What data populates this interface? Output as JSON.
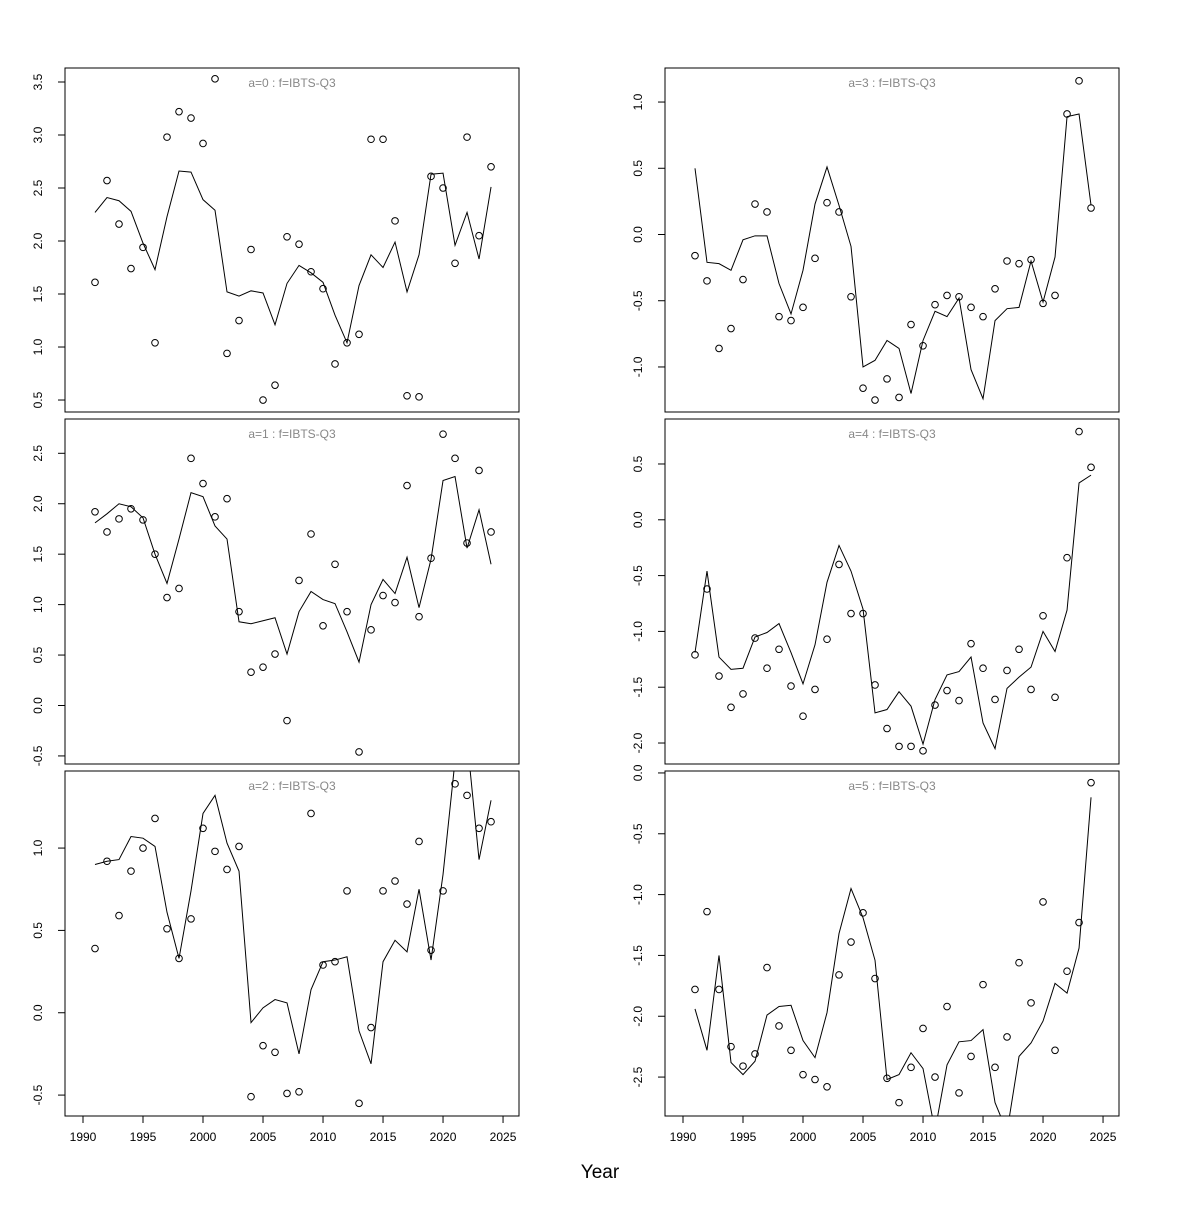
{
  "xlabel": "Year",
  "chart_data": [
    {
      "type": "line",
      "title": "a=0  :  f=IBTS-Q3",
      "x": [
        1991,
        1992,
        1993,
        1994,
        1995,
        1996,
        1997,
        1998,
        1999,
        2000,
        2001,
        2002,
        2003,
        2004,
        2005,
        2006,
        2007,
        2008,
        2009,
        2010,
        2011,
        2012,
        2013,
        2014,
        2015,
        2016,
        2017,
        2018,
        2019,
        2020,
        2021,
        2022,
        2023,
        2024
      ],
      "series": [
        {
          "style": "points",
          "color": "#000000",
          "values": [
            1.61,
            2.57,
            2.16,
            1.74,
            1.94,
            1.04,
            2.98,
            3.22,
            3.16,
            2.92,
            3.53,
            0.94,
            1.25,
            1.92,
            0.5,
            0.64,
            2.04,
            1.97,
            1.71,
            1.55,
            0.84,
            1.04,
            1.12,
            2.96,
            2.96,
            2.19,
            0.54,
            0.53,
            2.61,
            2.5,
            1.79,
            2.98,
            2.05,
            2.7
          ]
        },
        {
          "style": "line",
          "color": "#000000",
          "values": [
            2.27,
            2.41,
            2.38,
            2.28,
            1.98,
            1.73,
            2.23,
            2.66,
            2.65,
            2.39,
            2.29,
            1.52,
            1.48,
            1.53,
            1.51,
            1.21,
            1.6,
            1.77,
            1.7,
            1.61,
            1.3,
            1.04,
            1.58,
            1.87,
            1.75,
            1.99,
            1.52,
            1.87,
            2.63,
            2.64,
            1.96,
            2.27,
            1.83,
            2.51
          ]
        }
      ],
      "xlim": [
        1988.5,
        2026.33
      ],
      "ylim": [
        0.387,
        3.632
      ],
      "yticks": [
        0.5,
        {
          "value": 1,
          "label": "1.0"
        },
        1.5,
        {
          "value": 2,
          "label": "2.0"
        },
        2.5,
        {
          "value": 3,
          "label": "3.0"
        },
        3.5
      ]
    },
    {
      "type": "line",
      "title": "a=1  :  f=IBTS-Q3",
      "x": [
        1991,
        1992,
        1993,
        1994,
        1995,
        1996,
        1997,
        1998,
        1999,
        2000,
        2001,
        2002,
        2003,
        2004,
        2005,
        2006,
        2007,
        2008,
        2009,
        2010,
        2011,
        2012,
        2013,
        2014,
        2015,
        2016,
        2017,
        2018,
        2019,
        2020,
        2021,
        2022,
        2023,
        2024
      ],
      "series": [
        {
          "style": "points",
          "color": "#000000",
          "values": [
            1.92,
            1.72,
            1.85,
            1.95,
            1.84,
            1.5,
            1.07,
            1.16,
            2.45,
            2.2,
            1.87,
            2.05,
            0.93,
            0.33,
            0.38,
            0.51,
            -0.15,
            1.24,
            1.7,
            0.79,
            1.4,
            0.93,
            -0.46,
            0.75,
            1.09,
            1.02,
            2.18,
            0.88,
            1.46,
            2.69,
            2.45,
            1.61,
            2.33,
            1.72
          ]
        },
        {
          "style": "line",
          "color": "#000000",
          "values": [
            1.81,
            1.9,
            2.0,
            1.97,
            1.86,
            1.5,
            1.21,
            1.65,
            2.11,
            2.07,
            1.78,
            1.65,
            0.83,
            0.81,
            0.84,
            0.87,
            0.51,
            0.93,
            1.13,
            1.05,
            1.01,
            0.73,
            0.43,
            1.0,
            1.25,
            1.11,
            1.47,
            0.97,
            1.45,
            2.23,
            2.27,
            1.56,
            1.94,
            1.4
          ]
        }
      ],
      "xlim": [
        1988.5,
        2026.33
      ],
      "ylim": [
        -0.58,
        2.84
      ],
      "yticks": [
        -0.5,
        {
          "value": 0,
          "label": "0.0"
        },
        0.5,
        {
          "value": 1,
          "label": "1.0"
        },
        1.5,
        {
          "value": 2,
          "label": "2.0"
        },
        2.5
      ]
    },
    {
      "type": "line",
      "title": "a=2  :  f=IBTS-Q3",
      "x": [
        1991,
        1992,
        1993,
        1994,
        1995,
        1996,
        1997,
        1998,
        1999,
        2000,
        2001,
        2002,
        2003,
        2004,
        2005,
        2006,
        2007,
        2008,
        2009,
        2010,
        2011,
        2012,
        2013,
        2014,
        2015,
        2016,
        2017,
        2018,
        2019,
        2020,
        2021,
        2022,
        2023,
        2024
      ],
      "series": [
        {
          "style": "points",
          "color": "#000000",
          "values": [
            0.39,
            0.92,
            0.59,
            0.86,
            1.0,
            1.18,
            0.51,
            0.33,
            0.57,
            1.12,
            0.98,
            0.87,
            1.01,
            -0.51,
            -0.2,
            -0.24,
            -0.49,
            -0.48,
            1.21,
            0.29,
            0.31,
            0.74,
            -0.55,
            -0.09,
            0.74,
            0.8,
            0.66,
            1.04,
            0.38,
            0.74,
            1.39,
            1.32,
            1.12,
            1.16
          ]
        },
        {
          "style": "line",
          "color": "#000000",
          "values": [
            0.9,
            0.92,
            0.93,
            1.07,
            1.06,
            1.01,
            0.61,
            0.33,
            0.74,
            1.21,
            1.32,
            1.03,
            0.86,
            -0.06,
            0.03,
            0.08,
            0.06,
            -0.25,
            0.14,
            0.31,
            0.32,
            0.34,
            -0.11,
            -0.31,
            0.31,
            0.44,
            0.37,
            0.75,
            0.32,
            0.84,
            1.53,
            1.66,
            0.93,
            1.29
          ]
        }
      ],
      "xlim": [
        1988.5,
        2026.33
      ],
      "ylim": [
        -0.627,
        1.468
      ],
      "xticks": [
        1990,
        1995,
        2000,
        2005,
        2010,
        2015,
        2020,
        2025
      ],
      "yticks": [
        -0.5,
        {
          "value": 0,
          "label": "0.0"
        },
        0.5,
        {
          "value": 1,
          "label": "1.0"
        }
      ]
    },
    {
      "type": "line",
      "title": "a=3  :  f=IBTS-Q3",
      "x": [
        1991,
        1992,
        1993,
        1994,
        1995,
        1996,
        1997,
        1998,
        1999,
        2000,
        2001,
        2002,
        2003,
        2004,
        2005,
        2006,
        2007,
        2008,
        2009,
        2010,
        2011,
        2012,
        2013,
        2014,
        2015,
        2016,
        2017,
        2018,
        2019,
        2020,
        2021,
        2022,
        2023,
        2024
      ],
      "series": [
        {
          "style": "points",
          "color": "#000000",
          "values": [
            -0.16,
            -0.35,
            -0.86,
            -0.71,
            -0.34,
            0.23,
            0.17,
            -0.62,
            -0.65,
            -0.55,
            -0.18,
            0.24,
            0.17,
            -0.47,
            -1.16,
            -1.25,
            -1.09,
            -1.23,
            -0.68,
            -0.84,
            -0.53,
            -0.46,
            -0.47,
            -0.55,
            -0.62,
            -0.41,
            -0.2,
            -0.22,
            -0.19,
            -0.52,
            -0.46,
            0.91,
            1.16,
            0.2
          ]
        },
        {
          "style": "line",
          "color": "#000000",
          "values": [
            0.5,
            -0.21,
            -0.22,
            -0.27,
            -0.04,
            -0.01,
            -0.01,
            -0.37,
            -0.6,
            -0.27,
            0.23,
            0.51,
            0.22,
            -0.09,
            -1.0,
            -0.95,
            -0.8,
            -0.86,
            -1.2,
            -0.8,
            -0.58,
            -0.62,
            -0.48,
            -1.02,
            -1.24,
            -0.65,
            -0.56,
            -0.55,
            -0.2,
            -0.51,
            -0.17,
            0.89,
            0.91,
            0.22
          ]
        }
      ],
      "xlim": [
        1988.5,
        2026.33
      ],
      "ylim": [
        -1.34,
        1.257
      ],
      "yticks": [
        {
          "value": -1,
          "label": "-1.0"
        },
        -0.5,
        {
          "value": 0,
          "label": "0.0"
        },
        0.5,
        {
          "value": 1,
          "label": "1.0"
        }
      ]
    },
    {
      "type": "line",
      "title": "a=4  :  f=IBTS-Q3",
      "x": [
        1991,
        1992,
        1993,
        1994,
        1995,
        1996,
        1997,
        1998,
        1999,
        2000,
        2001,
        2002,
        2003,
        2004,
        2005,
        2006,
        2007,
        2008,
        2009,
        2010,
        2011,
        2012,
        2013,
        2014,
        2015,
        2016,
        2017,
        2018,
        2019,
        2020,
        2021,
        2022,
        2023,
        2024
      ],
      "series": [
        {
          "style": "points",
          "color": "#000000",
          "values": [
            -1.21,
            -0.62,
            -1.4,
            -1.68,
            -1.56,
            -1.06,
            -1.33,
            -1.16,
            -1.49,
            -1.76,
            -1.52,
            -1.07,
            -0.4,
            -0.84,
            -0.84,
            -1.48,
            -1.87,
            -2.03,
            -2.03,
            -2.07,
            -1.66,
            -1.53,
            -1.62,
            -1.11,
            -1.33,
            -1.61,
            -1.35,
            -1.16,
            -1.52,
            -0.86,
            -1.59,
            -0.34,
            0.79,
            0.47
          ]
        },
        {
          "style": "line",
          "color": "#000000",
          "values": [
            -1.19,
            -0.46,
            -1.23,
            -1.34,
            -1.33,
            -1.05,
            -1.01,
            -0.93,
            -1.19,
            -1.47,
            -1.12,
            -0.56,
            -0.23,
            -0.46,
            -0.8,
            -1.73,
            -1.7,
            -1.54,
            -1.67,
            -2.01,
            -1.61,
            -1.39,
            -1.36,
            -1.23,
            -1.82,
            -2.05,
            -1.51,
            -1.41,
            -1.32,
            -1.0,
            -1.18,
            -0.81,
            0.33,
            0.4
          ]
        }
      ],
      "xlim": [
        1988.5,
        2026.33
      ],
      "ylim": [
        -2.188,
        0.903
      ],
      "yticks": [
        {
          "value": -2,
          "label": "-2.0"
        },
        -1.5,
        {
          "value": -1,
          "label": "-1.0"
        },
        -0.5,
        {
          "value": 0,
          "label": "0.0"
        },
        0.5
      ]
    },
    {
      "type": "line",
      "title": "a=5  :  f=IBTS-Q3",
      "x": [
        1991,
        1992,
        1993,
        1994,
        1995,
        1996,
        1997,
        1998,
        1999,
        2000,
        2001,
        2002,
        2003,
        2004,
        2005,
        2006,
        2007,
        2008,
        2009,
        2010,
        2011,
        2012,
        2013,
        2014,
        2015,
        2016,
        2017,
        2018,
        2019,
        2020,
        2021,
        2022,
        2023,
        2024
      ],
      "series": [
        {
          "style": "points",
          "color": "#000000",
          "values": [
            -1.78,
            -1.14,
            -1.78,
            -2.25,
            -2.41,
            -2.31,
            -1.6,
            -2.08,
            -2.28,
            -2.48,
            -2.52,
            -2.58,
            -1.66,
            -1.39,
            -1.15,
            -1.69,
            -2.51,
            -2.71,
            -2.42,
            -2.1,
            -2.5,
            -1.92,
            -2.63,
            -2.33,
            -1.74,
            -2.42,
            -2.17,
            -1.56,
            -1.89,
            -1.06,
            -2.28,
            -1.63,
            -1.23,
            -0.08
          ]
        },
        {
          "style": "line",
          "color": "#000000",
          "values": [
            -1.94,
            -2.28,
            -1.5,
            -2.38,
            -2.48,
            -2.37,
            -1.99,
            -1.92,
            -1.91,
            -2.2,
            -2.34,
            -1.97,
            -1.32,
            -0.95,
            -1.19,
            -1.54,
            -2.52,
            -2.48,
            -2.3,
            -2.43,
            -2.94,
            -2.4,
            -2.21,
            -2.2,
            -2.11,
            -2.71,
            -2.95,
            -2.33,
            -2.22,
            -2.04,
            -1.73,
            -1.81,
            -1.44,
            -0.2
          ]
        }
      ],
      "xlim": [
        1988.5,
        2026.33
      ],
      "ylim": [
        -2.82,
        0.016
      ],
      "xticks": [
        1990,
        1995,
        2000,
        2005,
        2010,
        2015,
        2020,
        2025
      ],
      "yticks": [
        -2.5,
        {
          "value": -2,
          "label": "-2.0"
        },
        -1.5,
        {
          "value": -1,
          "label": "-1.0"
        },
        -0.5,
        {
          "value": 0,
          "label": "0.0"
        }
      ]
    }
  ]
}
